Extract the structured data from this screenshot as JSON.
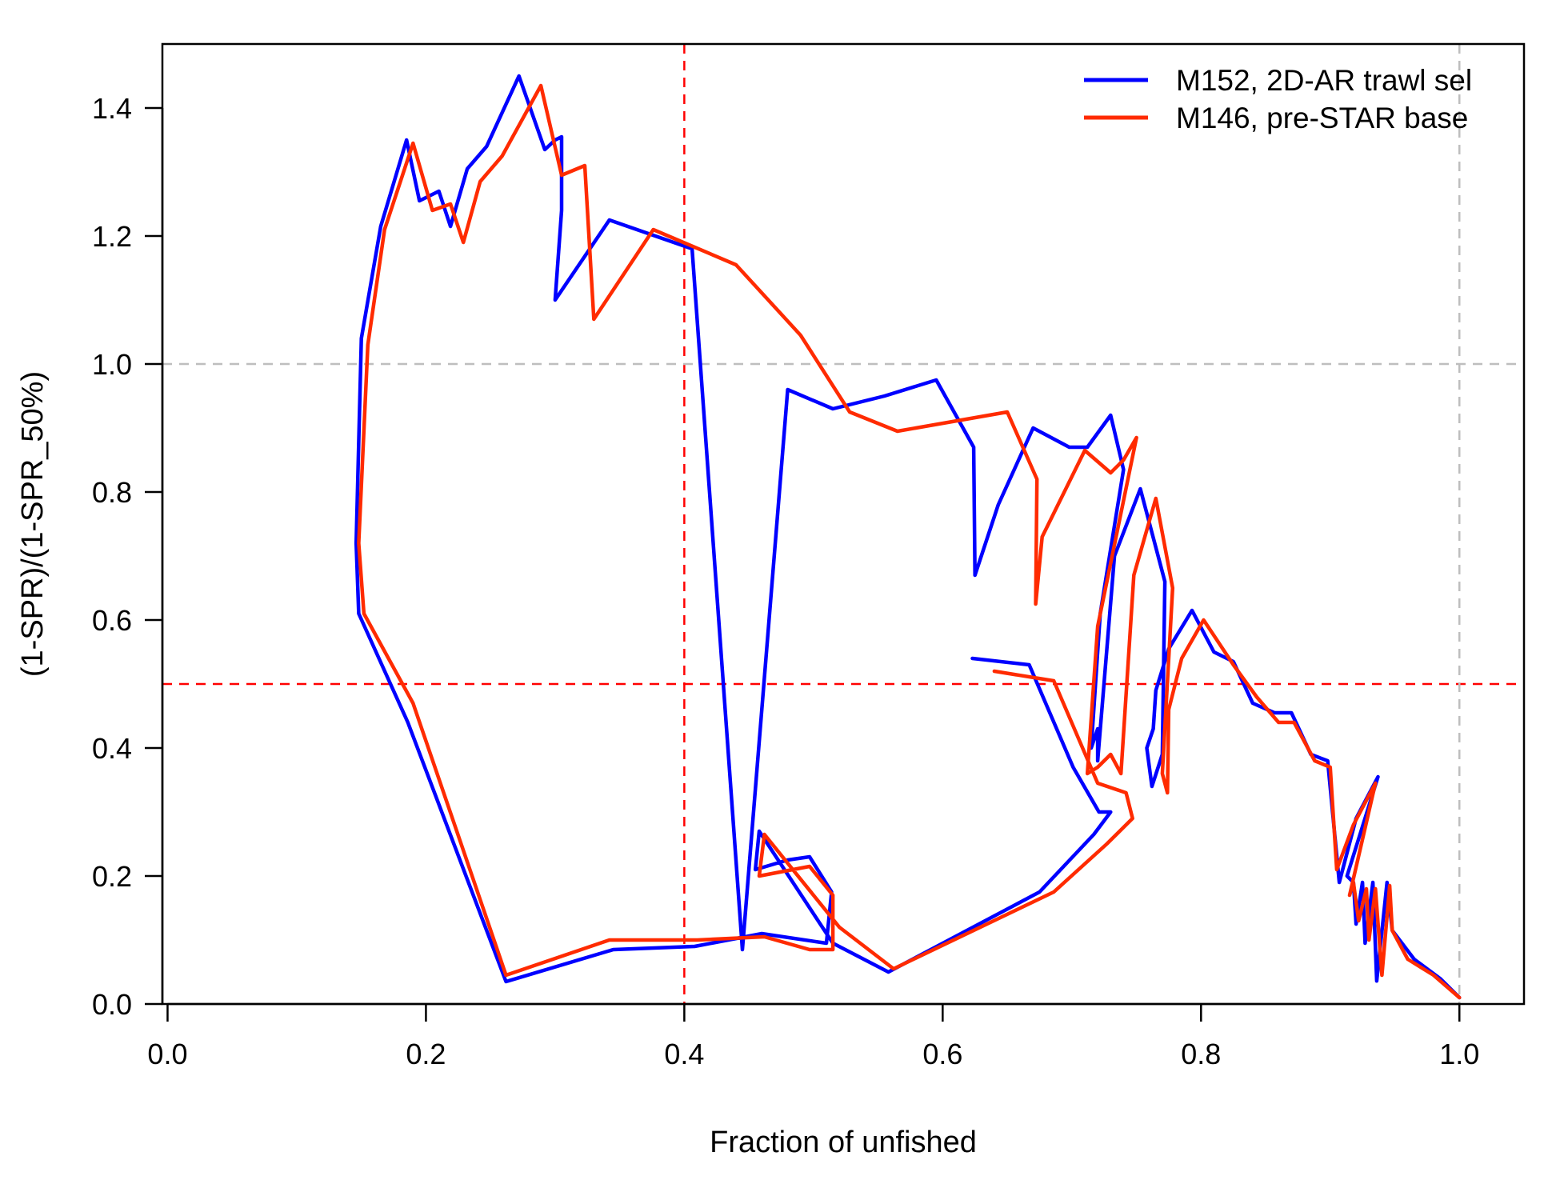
{
  "chart_data": {
    "type": "line",
    "xlabel": "Fraction of unfished",
    "ylabel": "(1-SPR)/(1-SPR_50%)",
    "xlim": [
      -0.004,
      1.05
    ],
    "ylim": [
      0.0,
      1.5
    ],
    "x_ticks": [
      0.0,
      0.2,
      0.4,
      0.6,
      0.8,
      1.0
    ],
    "x_tick_labels": [
      "0.0",
      "0.2",
      "0.4",
      "0.6",
      "0.8",
      "1.0"
    ],
    "y_ticks": [
      0.0,
      0.2,
      0.4,
      0.6,
      0.8,
      1.0,
      1.2,
      1.4
    ],
    "y_tick_labels": [
      "0.0",
      "0.2",
      "0.4",
      "0.6",
      "0.8",
      "1.0",
      "1.2",
      "1.4"
    ],
    "legend": {
      "position": "top-right"
    },
    "reference_lines": [
      {
        "axis": "x",
        "value": 0.4,
        "color": "#ff0000",
        "style": "dashed"
      },
      {
        "axis": "y",
        "value": 0.5,
        "color": "#ff0000",
        "style": "dashed"
      },
      {
        "axis": "x",
        "value": 1.0,
        "color": "#bebebe",
        "style": "dashed"
      },
      {
        "axis": "y",
        "value": 1.0,
        "color": "#bebebe",
        "style": "dashed"
      }
    ],
    "series": [
      {
        "name": "M152, 2D-AR trawl sel",
        "color": "#0000ff",
        "points": [
          [
            1.0,
            0.01
          ],
          [
            0.985,
            0.04
          ],
          [
            0.965,
            0.07
          ],
          [
            0.948,
            0.115
          ],
          [
            0.944,
            0.19
          ],
          [
            0.936,
            0.036
          ],
          [
            0.933,
            0.19
          ],
          [
            0.927,
            0.095
          ],
          [
            0.925,
            0.19
          ],
          [
            0.92,
            0.125
          ],
          [
            0.918,
            0.19
          ],
          [
            0.913,
            0.2
          ],
          [
            0.937,
            0.355
          ],
          [
            0.92,
            0.29
          ],
          [
            0.907,
            0.19
          ],
          [
            0.898,
            0.38
          ],
          [
            0.885,
            0.39
          ],
          [
            0.87,
            0.455
          ],
          [
            0.857,
            0.455
          ],
          [
            0.84,
            0.47
          ],
          [
            0.825,
            0.535
          ],
          [
            0.81,
            0.55
          ],
          [
            0.793,
            0.615
          ],
          [
            0.775,
            0.555
          ],
          [
            0.765,
            0.49
          ],
          [
            0.763,
            0.43
          ],
          [
            0.758,
            0.4
          ],
          [
            0.762,
            0.34
          ],
          [
            0.77,
            0.39
          ],
          [
            0.772,
            0.66
          ],
          [
            0.753,
            0.805
          ],
          [
            0.733,
            0.7
          ],
          [
            0.72,
            0.38
          ],
          [
            0.72,
            0.43
          ],
          [
            0.715,
            0.4
          ],
          [
            0.722,
            0.61
          ],
          [
            0.74,
            0.835
          ],
          [
            0.73,
            0.92
          ],
          [
            0.712,
            0.87
          ],
          [
            0.698,
            0.87
          ],
          [
            0.67,
            0.9
          ],
          [
            0.643,
            0.78
          ],
          [
            0.625,
            0.67
          ],
          [
            0.624,
            0.87
          ],
          [
            0.595,
            0.975
          ],
          [
            0.555,
            0.95
          ],
          [
            0.515,
            0.93
          ],
          [
            0.48,
            0.96
          ],
          [
            0.445,
            0.085
          ],
          [
            0.406,
            1.18
          ],
          [
            0.342,
            1.225
          ],
          [
            0.3,
            1.1
          ],
          [
            0.305,
            1.24
          ],
          [
            0.305,
            1.355
          ],
          [
            0.3,
            1.35
          ],
          [
            0.292,
            1.335
          ],
          [
            0.272,
            1.45
          ],
          [
            0.247,
            1.34
          ],
          [
            0.232,
            1.305
          ],
          [
            0.219,
            1.215
          ],
          [
            0.21,
            1.27
          ],
          [
            0.2,
            1.26
          ],
          [
            0.195,
            1.255
          ],
          [
            0.185,
            1.35
          ],
          [
            0.165,
            1.215
          ],
          [
            0.15,
            1.04
          ],
          [
            0.146,
            0.72
          ],
          [
            0.148,
            0.61
          ],
          [
            0.186,
            0.44
          ],
          [
            0.262,
            0.035
          ],
          [
            0.345,
            0.085
          ],
          [
            0.408,
            0.09
          ],
          [
            0.46,
            0.11
          ],
          [
            0.51,
            0.095
          ],
          [
            0.514,
            0.175
          ],
          [
            0.497,
            0.23
          ],
          [
            0.48,
            0.225
          ],
          [
            0.455,
            0.21
          ],
          [
            0.458,
            0.27
          ],
          [
            0.515,
            0.095
          ],
          [
            0.558,
            0.05
          ],
          [
            0.675,
            0.175
          ],
          [
            0.717,
            0.265
          ],
          [
            0.73,
            0.3
          ],
          [
            0.721,
            0.3
          ],
          [
            0.701,
            0.37
          ],
          [
            0.667,
            0.53
          ],
          [
            0.623,
            0.54
          ]
        ]
      },
      {
        "name": "M146, pre-STAR base",
        "color": "#ff2b00",
        "points": [
          [
            1.0,
            0.01
          ],
          [
            0.98,
            0.045
          ],
          [
            0.96,
            0.07
          ],
          [
            0.948,
            0.115
          ],
          [
            0.946,
            0.185
          ],
          [
            0.94,
            0.045
          ],
          [
            0.935,
            0.18
          ],
          [
            0.93,
            0.1
          ],
          [
            0.928,
            0.18
          ],
          [
            0.922,
            0.13
          ],
          [
            0.918,
            0.19
          ],
          [
            0.915,
            0.17
          ],
          [
            0.935,
            0.345
          ],
          [
            0.918,
            0.28
          ],
          [
            0.905,
            0.21
          ],
          [
            0.9,
            0.37
          ],
          [
            0.888,
            0.38
          ],
          [
            0.872,
            0.44
          ],
          [
            0.86,
            0.44
          ],
          [
            0.843,
            0.48
          ],
          [
            0.825,
            0.53
          ],
          [
            0.802,
            0.6
          ],
          [
            0.785,
            0.54
          ],
          [
            0.775,
            0.46
          ],
          [
            0.774,
            0.33
          ],
          [
            0.77,
            0.36
          ],
          [
            0.778,
            0.65
          ],
          [
            0.765,
            0.79
          ],
          [
            0.748,
            0.67
          ],
          [
            0.738,
            0.36
          ],
          [
            0.73,
            0.39
          ],
          [
            0.72,
            0.37
          ],
          [
            0.712,
            0.36
          ],
          [
            0.72,
            0.59
          ],
          [
            0.75,
            0.885
          ],
          [
            0.74,
            0.85
          ],
          [
            0.73,
            0.83
          ],
          [
            0.71,
            0.865
          ],
          [
            0.677,
            0.73
          ],
          [
            0.672,
            0.625
          ],
          [
            0.673,
            0.82
          ],
          [
            0.65,
            0.925
          ],
          [
            0.565,
            0.895
          ],
          [
            0.528,
            0.925
          ],
          [
            0.49,
            1.045
          ],
          [
            0.44,
            1.155
          ],
          [
            0.376,
            1.21
          ],
          [
            0.33,
            1.07
          ],
          [
            0.323,
            1.31
          ],
          [
            0.305,
            1.295
          ],
          [
            0.289,
            1.435
          ],
          [
            0.259,
            1.325
          ],
          [
            0.242,
            1.285
          ],
          [
            0.229,
            1.19
          ],
          [
            0.219,
            1.25
          ],
          [
            0.205,
            1.24
          ],
          [
            0.19,
            1.345
          ],
          [
            0.168,
            1.21
          ],
          [
            0.155,
            1.03
          ],
          [
            0.148,
            0.72
          ],
          [
            0.152,
            0.61
          ],
          [
            0.19,
            0.47
          ],
          [
            0.262,
            0.045
          ],
          [
            0.342,
            0.1
          ],
          [
            0.41,
            0.1
          ],
          [
            0.462,
            0.105
          ],
          [
            0.497,
            0.085
          ],
          [
            0.515,
            0.085
          ],
          [
            0.515,
            0.17
          ],
          [
            0.497,
            0.215
          ],
          [
            0.458,
            0.2
          ],
          [
            0.462,
            0.265
          ],
          [
            0.52,
            0.12
          ],
          [
            0.562,
            0.055
          ],
          [
            0.686,
            0.175
          ],
          [
            0.727,
            0.25
          ],
          [
            0.747,
            0.29
          ],
          [
            0.742,
            0.33
          ],
          [
            0.72,
            0.345
          ],
          [
            0.686,
            0.505
          ],
          [
            0.64,
            0.52
          ]
        ]
      }
    ]
  }
}
